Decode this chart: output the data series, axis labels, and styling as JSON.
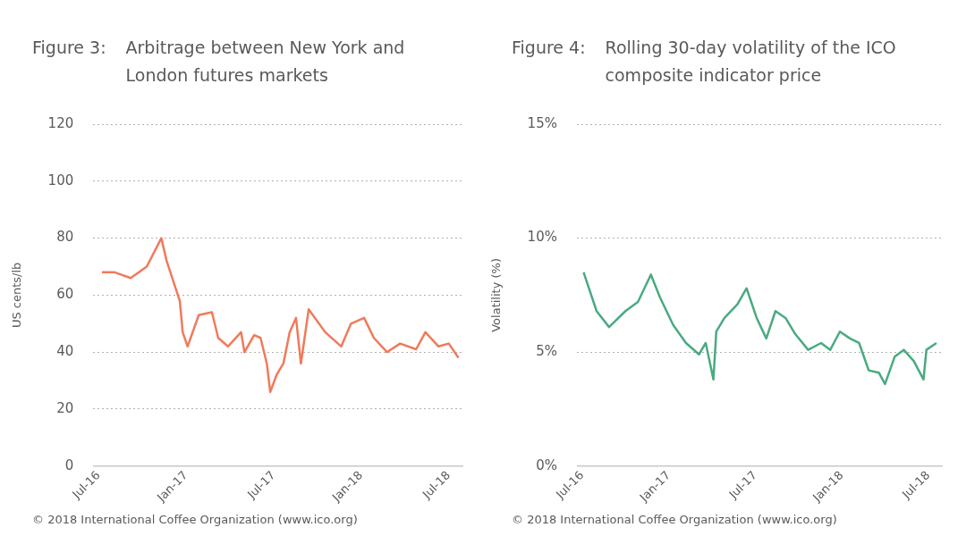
{
  "chart_data": [
    {
      "type": "line",
      "title": "Figure 3:",
      "subtitle": "Arbitrage between New York and London futures markets",
      "ylabel": "US cents/lb",
      "x": [
        "2016-07-08",
        "2016-08-04",
        "2016-09-07",
        "2016-10-10",
        "2016-11-10",
        "2016-11-21",
        "2016-12-18",
        "2016-12-24",
        "2017-01-04",
        "2017-01-27",
        "2017-02-24",
        "2017-03-07",
        "2017-03-27",
        "2017-04-24",
        "2017-05-01",
        "2017-05-21",
        "2017-06-04",
        "2017-06-17",
        "2017-06-24",
        "2017-07-07",
        "2017-07-21",
        "2017-08-04",
        "2017-08-17",
        "2017-08-27",
        "2017-09-13",
        "2017-10-17",
        "2017-11-20",
        "2017-12-10",
        "2018-01-07",
        "2018-01-27",
        "2018-02-24",
        "2018-03-21",
        "2018-04-24",
        "2018-05-13",
        "2018-06-10",
        "2018-07-01",
        "2018-07-21"
      ],
      "series": [
        {
          "color": "#f07a5a",
          "values": [
            68,
            68,
            66,
            70,
            80,
            72,
            58,
            47,
            42,
            53,
            54,
            45,
            42,
            47,
            40,
            46,
            45,
            36,
            26,
            32,
            36,
            47,
            52,
            36,
            55,
            47,
            42,
            50,
            52,
            45,
            40,
            43,
            41,
            47,
            42,
            43,
            38
          ]
        }
      ],
      "xlim": [
        "2016-06-20",
        "2018-08-01"
      ],
      "xticks": [
        {
          "value": "2016-07",
          "label": "Jul-16"
        },
        {
          "value": "2017-01",
          "label": "Jan-17"
        },
        {
          "value": "2017-07",
          "label": "Jul-17"
        },
        {
          "value": "2018-01",
          "label": "Jan-18"
        },
        {
          "value": "2018-07",
          "label": "Jul-18"
        }
      ],
      "ylim": [
        0,
        120
      ],
      "yticks": [
        0,
        20,
        40,
        60,
        80,
        100,
        120
      ],
      "grid": "y",
      "legend": false,
      "line_style": "solid",
      "annotations": [
        "© 2018 International Coffee Organization (www.ico.org)"
      ]
    },
    {
      "type": "line",
      "title": "Figure 4:",
      "subtitle": "Rolling 30-day volatility of the ICO composite indicator price",
      "ylabel": "Volatility (%)",
      "x": [
        "2016-07-04",
        "2016-08-01",
        "2016-08-27",
        "2016-10-01",
        "2016-10-27",
        "2016-11-24",
        "2016-12-13",
        "2017-01-10",
        "2017-02-07",
        "2017-03-04",
        "2017-03-18",
        "2017-04-04",
        "2017-04-10",
        "2017-04-27",
        "2017-05-24",
        "2017-06-13",
        "2017-07-04",
        "2017-07-24",
        "2017-08-13",
        "2017-09-04",
        "2017-09-24",
        "2017-10-21",
        "2017-11-18",
        "2017-12-07",
        "2017-12-27",
        "2018-01-18",
        "2018-02-07",
        "2018-02-27",
        "2018-03-18",
        "2018-04-01",
        "2018-04-21",
        "2018-05-10",
        "2018-06-01",
        "2018-06-21",
        "2018-06-27",
        "2018-07-18"
      ],
      "series": [
        {
          "color": "#4aaa80",
          "values": [
            8.5,
            6.8,
            6.1,
            6.8,
            7.2,
            8.4,
            7.4,
            6.2,
            5.4,
            4.9,
            5.4,
            3.8,
            5.9,
            6.5,
            7.1,
            7.8,
            6.5,
            5.6,
            6.8,
            6.5,
            5.8,
            5.1,
            5.4,
            5.1,
            5.9,
            5.6,
            5.4,
            4.2,
            4.1,
            3.6,
            4.8,
            5.1,
            4.6,
            3.8,
            5.1,
            5.4
          ]
        }
      ],
      "xlim": [
        "2016-06-20",
        "2018-08-01"
      ],
      "xticks": [
        {
          "value": "2016-07",
          "label": "Jul-16"
        },
        {
          "value": "2017-01",
          "label": "Jan-17"
        },
        {
          "value": "2017-07",
          "label": "Jul-17"
        },
        {
          "value": "2018-01",
          "label": "Jan-18"
        },
        {
          "value": "2018-07",
          "label": "Jul-18"
        }
      ],
      "ylim": [
        0,
        15
      ],
      "yticks": [
        {
          "value": 0,
          "label": "0%"
        },
        {
          "value": 5,
          "label": "5%"
        },
        {
          "value": 10,
          "label": "10%"
        },
        {
          "value": 15,
          "label": "15%"
        }
      ],
      "grid": "y",
      "legend": false,
      "line_style": "solid",
      "annotations": [
        "© 2018 International Coffee Organization (www.ico.org)"
      ]
    }
  ]
}
